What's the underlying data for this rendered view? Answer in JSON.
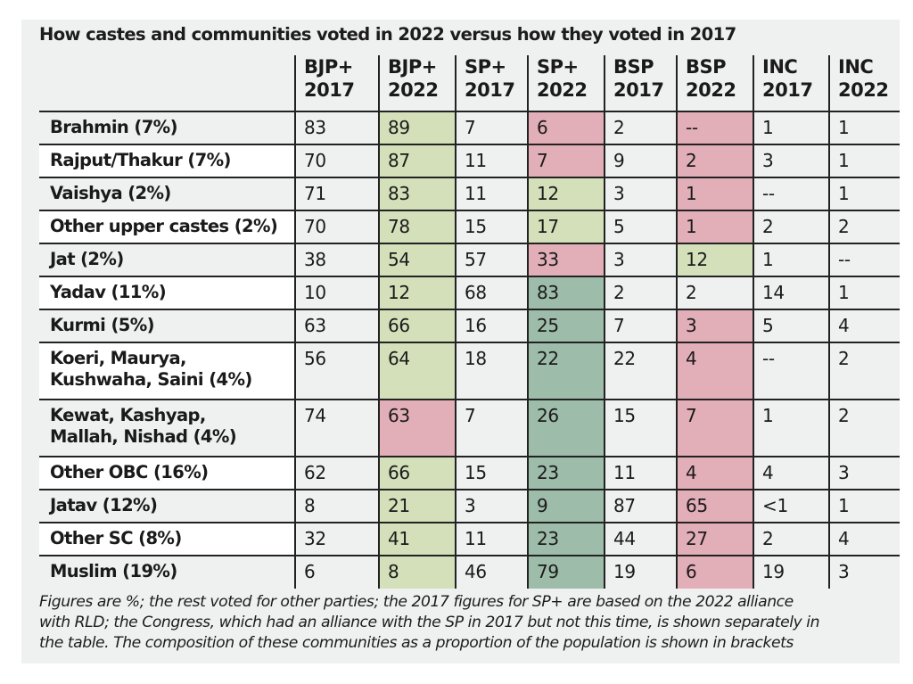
{
  "chart_data": {
    "type": "table",
    "title": "How castes and communities voted in 2022 versus how they voted in 2017",
    "columns": [
      {
        "party": "BJP+",
        "year": "2017"
      },
      {
        "party": "BJP+",
        "year": "2022"
      },
      {
        "party": "SP+",
        "year": "2017"
      },
      {
        "party": "SP+",
        "year": "2022"
      },
      {
        "party": "BSP",
        "year": "2017"
      },
      {
        "party": "BSP",
        "year": "2022"
      },
      {
        "party": "INC",
        "year": "2017"
      },
      {
        "party": "INC",
        "year": "2022"
      }
    ],
    "rows": [
      {
        "label": [
          "Brahmin (7%)"
        ],
        "values": [
          "83",
          "89",
          "7",
          "6",
          "2",
          "--",
          "1",
          "1"
        ],
        "highlight": [
          "",
          "lg",
          "",
          "pk",
          "",
          "pk",
          "",
          ""
        ]
      },
      {
        "label": [
          "Rajput/Thakur (7%)"
        ],
        "values": [
          "70",
          "87",
          "11",
          "7",
          "9",
          "2",
          "3",
          "1"
        ],
        "highlight": [
          "",
          "lg",
          "",
          "pk",
          "",
          "pk",
          "",
          ""
        ]
      },
      {
        "label": [
          "Vaishya (2%)"
        ],
        "values": [
          "71",
          "83",
          "11",
          "12",
          "3",
          "1",
          "--",
          "1"
        ],
        "highlight": [
          "",
          "lg",
          "",
          "lg",
          "",
          "pk",
          "",
          ""
        ]
      },
      {
        "label": [
          "Other upper castes (2%)"
        ],
        "values": [
          "70",
          "78",
          "15",
          "17",
          "5",
          "1",
          "2",
          "2"
        ],
        "highlight": [
          "",
          "lg",
          "",
          "lg",
          "",
          "pk",
          "",
          ""
        ]
      },
      {
        "label": [
          "Jat (2%)"
        ],
        "values": [
          "38",
          "54",
          "57",
          "33",
          "3",
          "12",
          "1",
          "--"
        ],
        "highlight": [
          "",
          "lg",
          "",
          "pk",
          "",
          "lg",
          "",
          ""
        ]
      },
      {
        "label": [
          "Yadav (11%)"
        ],
        "values": [
          "10",
          "12",
          "68",
          "83",
          "2",
          "2",
          "14",
          "1"
        ],
        "highlight": [
          "",
          "lg",
          "",
          "dg",
          "",
          "",
          "",
          ""
        ]
      },
      {
        "label": [
          "Kurmi (5%)"
        ],
        "values": [
          "63",
          "66",
          "16",
          "25",
          "7",
          "3",
          "5",
          "4"
        ],
        "highlight": [
          "",
          "lg",
          "",
          "dg",
          "",
          "pk",
          "",
          ""
        ]
      },
      {
        "label": [
          "Koeri, Maurya,",
          "Kushwaha, Saini (4%)"
        ],
        "values": [
          "56",
          "64",
          "18",
          "22",
          "22",
          "4",
          "--",
          "2"
        ],
        "highlight": [
          "",
          "lg",
          "",
          "dg",
          "",
          "pk",
          "",
          ""
        ]
      },
      {
        "label": [
          "Kewat, Kashyap,",
          "Mallah, Nishad (4%)"
        ],
        "values": [
          "74",
          "63",
          "7",
          "26",
          "15",
          "7",
          "1",
          "2"
        ],
        "highlight": [
          "",
          "pk",
          "",
          "dg",
          "",
          "pk",
          "",
          ""
        ]
      },
      {
        "label": [
          "Other OBC (16%)"
        ],
        "values": [
          "62",
          "66",
          "15",
          "23",
          "11",
          "4",
          "4",
          "3"
        ],
        "highlight": [
          "",
          "lg",
          "",
          "dg",
          "",
          "pk",
          "",
          ""
        ]
      },
      {
        "label": [
          "Jatav (12%)"
        ],
        "values": [
          "8",
          "21",
          "3",
          "9",
          "87",
          "65",
          "<1",
          "1"
        ],
        "highlight": [
          "",
          "lg",
          "",
          "dg",
          "",
          "pk",
          "",
          ""
        ]
      },
      {
        "label": [
          "Other SC (8%)"
        ],
        "values": [
          "32",
          "41",
          "11",
          "23",
          "44",
          "27",
          "2",
          "4"
        ],
        "highlight": [
          "",
          "lg",
          "",
          "dg",
          "",
          "pk",
          "",
          ""
        ]
      },
      {
        "label": [
          "Muslim (19%)"
        ],
        "values": [
          "6",
          "8",
          "46",
          "79",
          "19",
          "6",
          "19",
          "3"
        ],
        "highlight": [
          "",
          "lg",
          "",
          "dg",
          "",
          "pk",
          "",
          ""
        ]
      }
    ],
    "units": "%",
    "highlight_colors": {
      "lg": "#d3e0b9",
      "pk": "#e2aeb8",
      "dg": "#9dbcaa"
    },
    "background_color": "#eff0f0"
  },
  "footnote": [
    "Figures are %; the rest voted for other parties; the 2017 figures for SP+ are based on the 2022 alliance",
    "with RLD; the Congress, which had an alliance with the SP in 2017 but not this time, is shown separately in",
    "the table. The composition of these communities as a proportion of the population is shown in brackets"
  ]
}
